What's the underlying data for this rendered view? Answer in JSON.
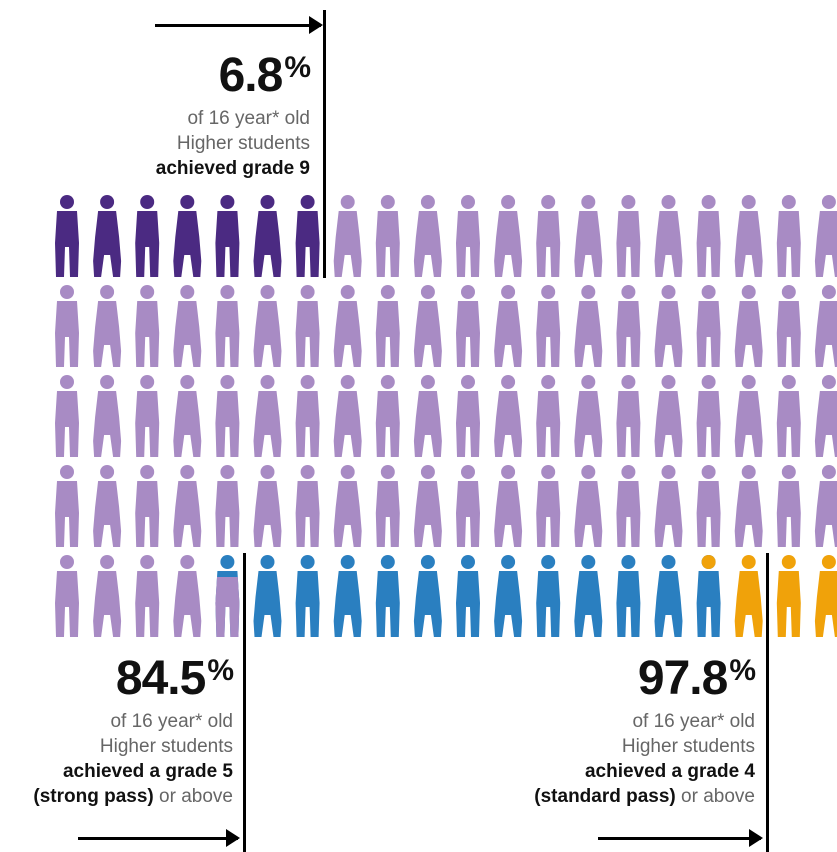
{
  "colors": {
    "grade9": "#4b2a82",
    "other": "#a88bc4",
    "grade5": "#2a7fc0",
    "grade4": "#f0a20a"
  },
  "icon": "person-icon",
  "grid": {
    "columns_visible": 21,
    "rows": 5,
    "row1_grade9_count": 7,
    "row5_purple_count": 4,
    "row5_split_index": 4,
    "row5_blue_end_index": 17,
    "row5_orange_count": 2
  },
  "callouts": {
    "grade9": {
      "value": "6.8",
      "unit": "%",
      "line1": "of 16 year* old",
      "line2": "Higher students",
      "line3": "achieved grade 9"
    },
    "grade5": {
      "value": "84.5",
      "unit": "%",
      "line1": "of 16 year* old",
      "line2": "Higher students",
      "line3": "achieved a grade 5",
      "line4_bold": "(strong pass)",
      "line4_rest": " or above"
    },
    "grade4": {
      "value": "97.8",
      "unit": "%",
      "line1": "of 16 year* old",
      "line2": "Higher students",
      "line3": "achieved a grade 4",
      "line4_bold": "(standard pass)",
      "line4_rest": " or above"
    }
  }
}
